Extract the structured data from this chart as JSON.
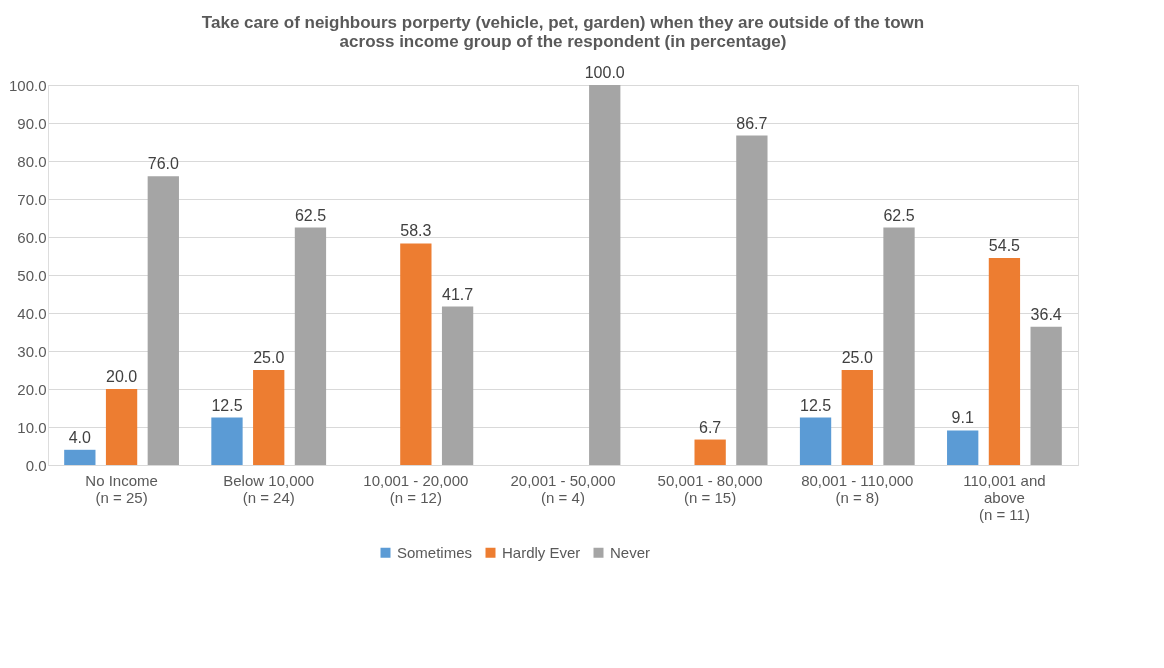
{
  "chart_data": {
    "type": "bar",
    "title": [
      "Take care of neighbours porperty (vehicle, pet, garden) when they are outside of the town",
      "across income group of the respondent (in percentage)"
    ],
    "categories": [
      "No Income\n(n = 25)",
      "Below 10,000\n(n = 24)",
      "10,001 - 20,000\n(n = 12)",
      "20,001 - 50,000\n(n = 4)",
      "50,001 - 80,000\n(n = 15)",
      "80,001 - 110,000\n(n = 8)",
      "110,001 and\nabove\n(n = 11)"
    ],
    "series": [
      {
        "name": "Sometimes",
        "color": "#5b9bd5",
        "values": [
          4.0,
          12.5,
          null,
          null,
          null,
          12.5,
          9.1
        ],
        "value_labels": [
          "4.0",
          "12.5",
          null,
          null,
          null,
          "12.5",
          "9.1"
        ]
      },
      {
        "name": "Hardly Ever",
        "color": "#ed7d31",
        "values": [
          20.0,
          25.0,
          58.3,
          null,
          6.7,
          25.0,
          54.5
        ],
        "value_labels": [
          "20.0",
          "25.0",
          "58.3",
          null,
          "6.7",
          "25.0",
          "54.5"
        ]
      },
      {
        "name": "Never",
        "color": "#a5a5a5",
        "values": [
          76.0,
          62.5,
          41.7,
          100.0,
          86.7,
          62.5,
          36.4
        ],
        "value_labels": [
          "76.0",
          "62.5",
          "41.7",
          "100.0",
          "86.7",
          "62.5",
          "36.4"
        ]
      }
    ],
    "ylim": [
      0,
      100
    ],
    "yticks": [
      {
        "value": 0,
        "label": "0.0"
      },
      {
        "value": 10,
        "label": "10.0"
      },
      {
        "value": 20,
        "label": "20.0"
      },
      {
        "value": 30,
        "label": "30.0"
      },
      {
        "value": 40,
        "label": "40.0"
      },
      {
        "value": 50,
        "label": "50.0"
      },
      {
        "value": 60,
        "label": "60.0"
      },
      {
        "value": 70,
        "label": "70.0"
      },
      {
        "value": 80,
        "label": "80.0"
      },
      {
        "value": 90,
        "label": "90.0"
      },
      {
        "value": 100,
        "label": "100.0"
      }
    ],
    "grid": "y",
    "legend": "bottom"
  }
}
